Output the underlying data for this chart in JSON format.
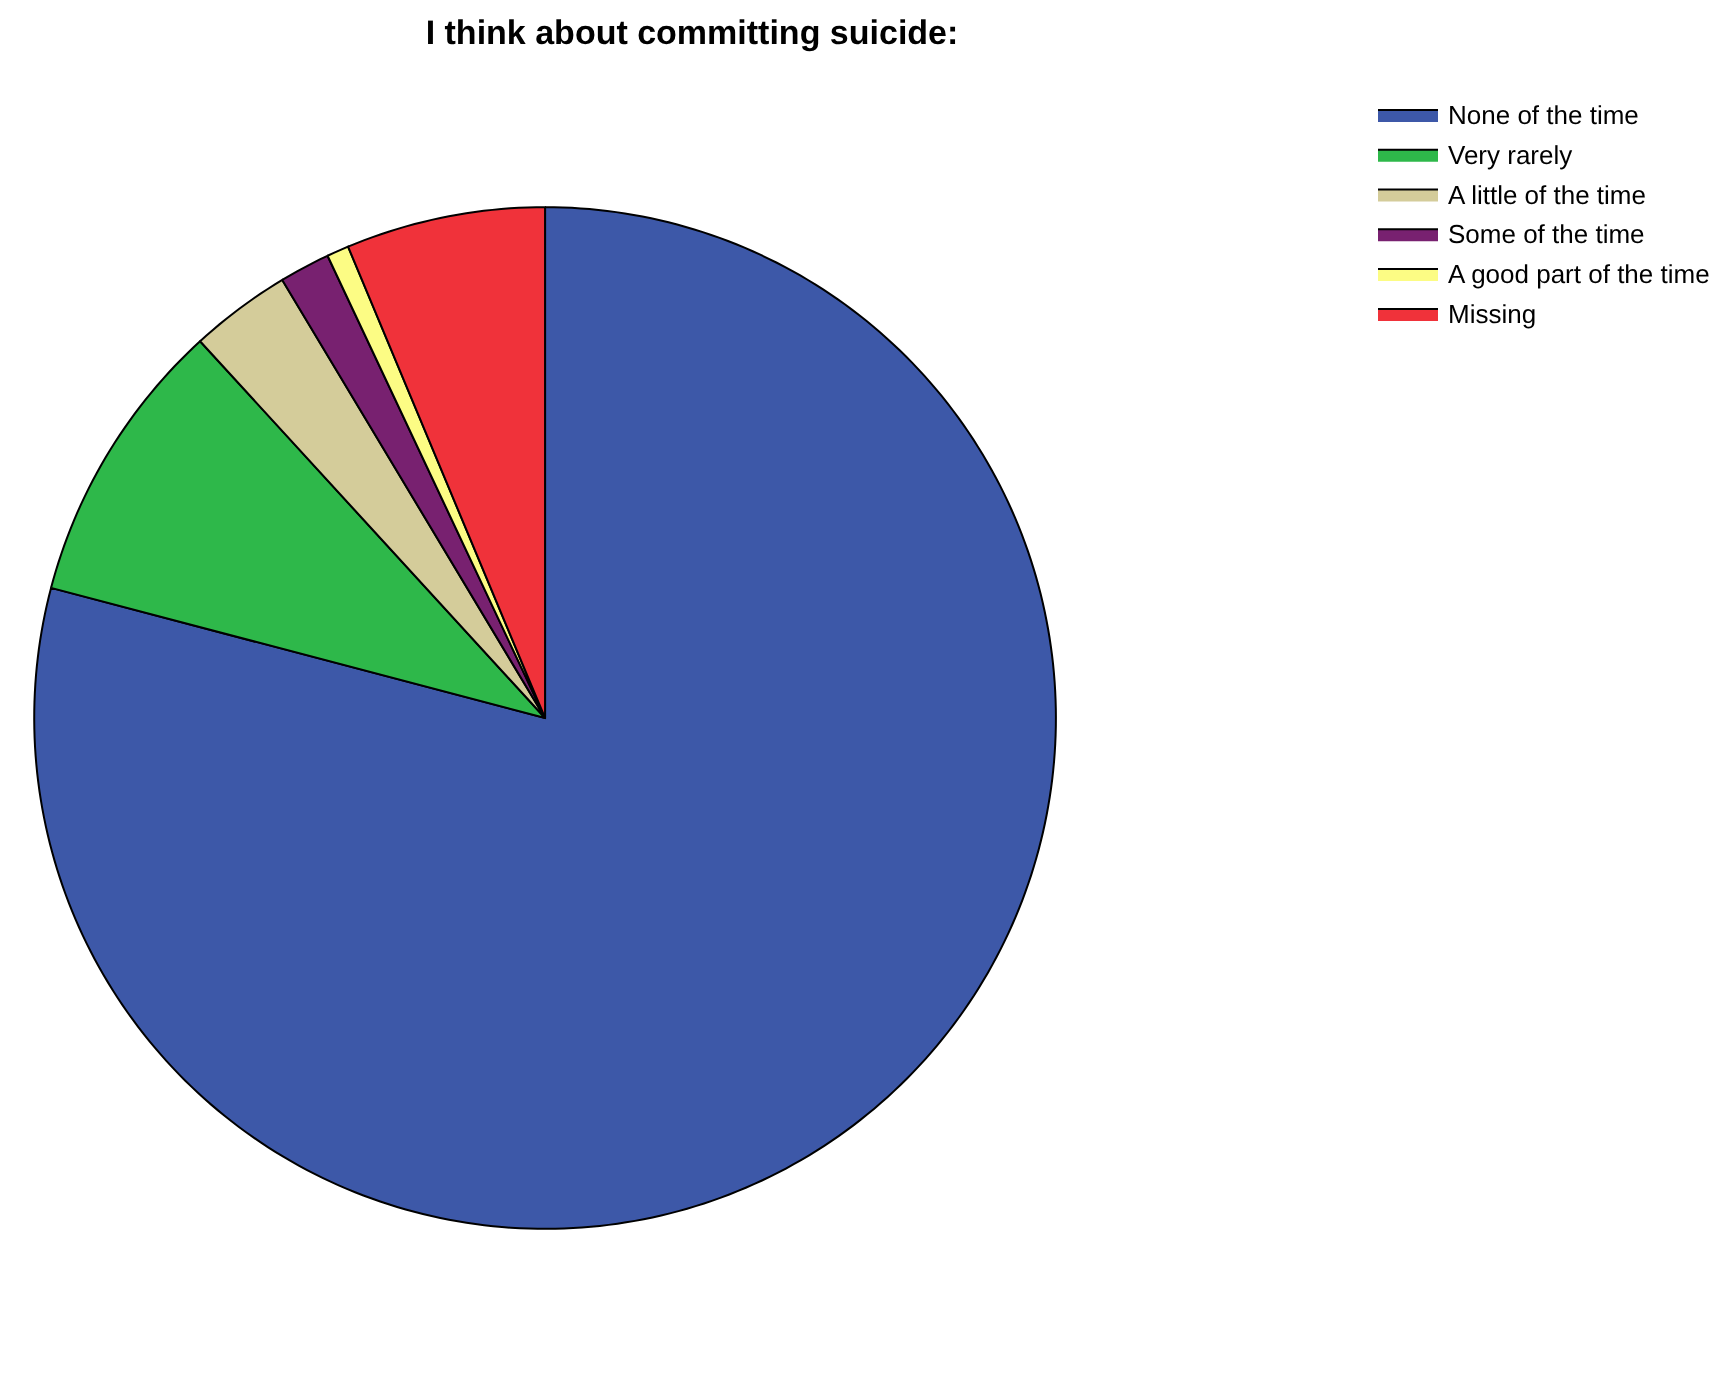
{
  "chart_data": {
    "type": "pie",
    "title": "I think about committing suicide:",
    "categories": [
      "None of the time",
      "Very rarely",
      "A little of the time",
      "Some of the time",
      "A good part of the time",
      "Missing"
    ],
    "values": [
      79.1,
      9.1,
      3.2,
      1.6,
      0.7,
      6.3
    ],
    "colors": [
      "#3d58a8",
      "#2eb84a",
      "#d4cc9a",
      "#782170",
      "#fcfc84",
      "#f0323a"
    ],
    "legend": "top right"
  }
}
